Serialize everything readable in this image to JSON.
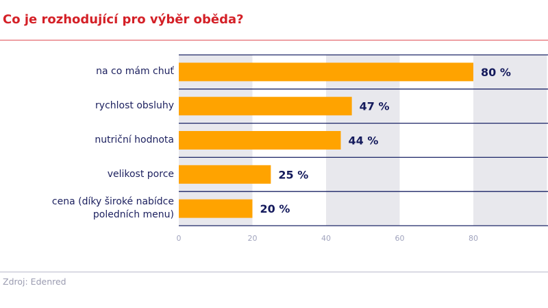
{
  "title": "Co je rozhodující pro výběr oběda?",
  "source": "Zdroj: Edenred",
  "chart_data": {
    "type": "bar",
    "orientation": "horizontal",
    "categories": [
      "na co mám chuť",
      "rychlost obsluhy",
      "nutriční hodnota",
      "velikost porce",
      "cena (díky široké nabídce poledních menu)"
    ],
    "values": [
      80,
      47,
      44,
      25,
      20
    ],
    "data_labels": [
      "80 %",
      "47 %",
      "44 %",
      "25 %",
      "20 %"
    ],
    "xlim": [
      0,
      100
    ],
    "xticks": [
      0,
      20,
      40,
      60,
      80
    ],
    "grid": "alternating vertical bands",
    "colors": {
      "bar": "#ffa300",
      "label": "#141a5c",
      "band": "#e8e8ed",
      "separator": "#1b2466",
      "tick": "#a0a3bd"
    }
  }
}
